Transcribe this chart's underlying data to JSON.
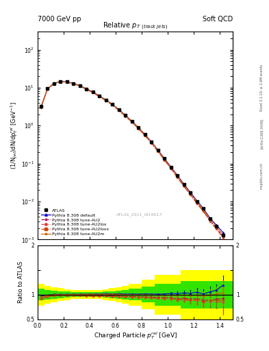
{
  "title_left": "7000 GeV pp",
  "title_right": "Soft QCD",
  "xlabel": "Charged Particle $p_T^{rel}$ [GeV]",
  "ylabel_top": "(1/N$_{jet}$)dN/dp$_T^{rel}$ [GeV$^{-1}$]",
  "ylabel_bottom": "Ratio to ATLAS",
  "watermark": "ATLAS_2011_I919017",
  "right_label_top": "Rivet 3.1.10; ≥ 2.6M events",
  "right_label_mid": "[arXiv:1306.3436]",
  "right_label_bot": "mcplots.cern.ch",
  "x_data": [
    0.025,
    0.075,
    0.125,
    0.175,
    0.225,
    0.275,
    0.325,
    0.375,
    0.425,
    0.475,
    0.525,
    0.575,
    0.625,
    0.675,
    0.725,
    0.775,
    0.825,
    0.875,
    0.925,
    0.975,
    1.025,
    1.075,
    1.125,
    1.175,
    1.225,
    1.275,
    1.325,
    1.375,
    1.425
  ],
  "atlas_y": [
    3.2,
    9.4,
    13.0,
    14.5,
    14.2,
    13.0,
    11.2,
    9.3,
    7.6,
    6.0,
    4.7,
    3.6,
    2.6,
    1.85,
    1.3,
    0.88,
    0.58,
    0.37,
    0.225,
    0.135,
    0.08,
    0.048,
    0.028,
    0.017,
    0.01,
    0.0065,
    0.0035,
    0.0022,
    0.0013
  ],
  "atlas_yerr": [
    0.15,
    0.3,
    0.35,
    0.4,
    0.38,
    0.35,
    0.3,
    0.25,
    0.2,
    0.16,
    0.12,
    0.09,
    0.07,
    0.05,
    0.035,
    0.024,
    0.016,
    0.01,
    0.006,
    0.004,
    0.0025,
    0.0015,
    0.0009,
    0.0005,
    0.0003,
    0.0002,
    0.0001,
    0.0001,
    5e-05
  ],
  "pythia_default_y": [
    3.1,
    9.3,
    13.1,
    14.6,
    14.3,
    13.1,
    11.3,
    9.4,
    7.7,
    6.1,
    4.8,
    3.65,
    2.65,
    1.87,
    1.32,
    0.89,
    0.59,
    0.375,
    0.228,
    0.137,
    0.082,
    0.049,
    0.029,
    0.0175,
    0.0105,
    0.0066,
    0.0037,
    0.0024,
    0.00155
  ],
  "pythia_AU2_y": [
    2.95,
    9.1,
    12.85,
    14.35,
    14.05,
    12.85,
    11.05,
    9.15,
    7.45,
    5.85,
    4.6,
    3.5,
    2.52,
    1.78,
    1.25,
    0.845,
    0.555,
    0.352,
    0.213,
    0.127,
    0.075,
    0.044,
    0.026,
    0.0155,
    0.0092,
    0.0058,
    0.0031,
    0.002,
    0.0012
  ],
  "pythia_AU2lox_y": [
    2.92,
    9.0,
    12.75,
    14.25,
    13.95,
    12.75,
    10.95,
    9.05,
    7.35,
    5.78,
    4.55,
    3.46,
    2.49,
    1.76,
    1.23,
    0.83,
    0.545,
    0.345,
    0.208,
    0.123,
    0.073,
    0.043,
    0.025,
    0.015,
    0.0088,
    0.0055,
    0.003,
    0.0019,
    0.0011
  ],
  "pythia_AU2loxx_y": [
    2.93,
    9.05,
    12.8,
    14.3,
    14.0,
    12.8,
    11.0,
    9.1,
    7.4,
    5.8,
    4.57,
    3.48,
    2.51,
    1.77,
    1.24,
    0.835,
    0.548,
    0.347,
    0.21,
    0.125,
    0.074,
    0.0435,
    0.0255,
    0.0152,
    0.009,
    0.0056,
    0.0031,
    0.00195,
    0.00115
  ],
  "pythia_AU2m_y": [
    3.05,
    9.25,
    13.05,
    14.55,
    14.25,
    13.05,
    11.25,
    9.35,
    7.65,
    6.05,
    4.75,
    3.62,
    2.62,
    1.85,
    1.3,
    0.878,
    0.578,
    0.368,
    0.222,
    0.133,
    0.079,
    0.047,
    0.0278,
    0.0167,
    0.0099,
    0.00627,
    0.00345,
    0.00222,
    0.00135
  ],
  "ratio_default": [
    0.97,
    0.989,
    1.008,
    1.007,
    1.007,
    1.008,
    1.009,
    1.011,
    1.013,
    1.017,
    1.021,
    1.014,
    1.019,
    1.011,
    1.015,
    1.011,
    1.017,
    1.013,
    1.013,
    1.015,
    1.025,
    1.021,
    1.036,
    1.029,
    1.05,
    1.015,
    1.057,
    1.09,
    1.19
  ],
  "ratio_default_err": [
    0.0,
    0.0,
    0.0,
    0.0,
    0.0,
    0.0,
    0.0,
    0.0,
    0.0,
    0.0,
    0.0,
    0.0,
    0.0,
    0.0,
    0.0,
    0.0,
    0.0,
    0.0,
    0.0,
    0.0,
    0.03,
    0.04,
    0.05,
    0.06,
    0.08,
    0.09,
    0.1,
    0.12,
    0.2
  ],
  "ratio_AU2": [
    0.922,
    0.968,
    0.988,
    0.99,
    0.989,
    0.988,
    0.987,
    0.984,
    0.98,
    0.975,
    0.979,
    0.972,
    0.969,
    0.962,
    0.962,
    0.96,
    0.957,
    0.951,
    0.947,
    0.941,
    0.938,
    0.917,
    0.929,
    0.912,
    0.92,
    0.892,
    0.886,
    0.909,
    0.923
  ],
  "ratio_AU2_err": [
    0.0,
    0.0,
    0.0,
    0.0,
    0.0,
    0.0,
    0.0,
    0.0,
    0.0,
    0.0,
    0.0,
    0.0,
    0.0,
    0.0,
    0.0,
    0.0,
    0.0,
    0.0,
    0.0,
    0.0,
    0.03,
    0.04,
    0.05,
    0.07,
    0.09,
    0.1,
    0.12,
    0.15,
    0.25
  ],
  "ratio_AU2lox": [
    0.913,
    0.957,
    0.981,
    0.983,
    0.983,
    0.981,
    0.978,
    0.973,
    0.967,
    0.963,
    0.968,
    0.961,
    0.958,
    0.951,
    0.946,
    0.943,
    0.939,
    0.932,
    0.924,
    0.911,
    0.913,
    0.896,
    0.893,
    0.882,
    0.88,
    0.846,
    0.857,
    0.864,
    0.846
  ],
  "ratio_AU2lox_err": [
    0.0,
    0.0,
    0.0,
    0.0,
    0.0,
    0.0,
    0.0,
    0.0,
    0.0,
    0.0,
    0.0,
    0.0,
    0.0,
    0.0,
    0.0,
    0.0,
    0.0,
    0.0,
    0.0,
    0.0,
    0.03,
    0.04,
    0.05,
    0.07,
    0.09,
    0.1,
    0.12,
    0.15,
    0.25
  ],
  "ratio_AU2loxx": [
    0.916,
    0.963,
    0.985,
    0.986,
    0.986,
    0.985,
    0.982,
    0.978,
    0.974,
    0.967,
    0.972,
    0.967,
    0.965,
    0.957,
    0.954,
    0.949,
    0.945,
    0.938,
    0.933,
    0.926,
    0.925,
    0.906,
    0.911,
    0.894,
    0.9,
    0.862,
    0.886,
    0.886,
    0.885
  ],
  "ratio_AU2loxx_err": [
    0.0,
    0.0,
    0.0,
    0.0,
    0.0,
    0.0,
    0.0,
    0.0,
    0.0,
    0.0,
    0.0,
    0.0,
    0.0,
    0.0,
    0.0,
    0.0,
    0.0,
    0.0,
    0.0,
    0.0,
    0.03,
    0.04,
    0.05,
    0.07,
    0.09,
    0.1,
    0.12,
    0.15,
    0.25
  ],
  "ratio_AU2m": [
    0.953,
    0.984,
    1.004,
    1.003,
    1.004,
    1.004,
    1.004,
    1.005,
    1.007,
    1.008,
    1.011,
    1.006,
    1.008,
    1.0,
    1.0,
    0.997,
    0.997,
    0.995,
    0.987,
    0.985,
    0.988,
    0.979,
    0.993,
    0.982,
    0.99,
    0.965,
    0.986,
    1.009,
    1.038
  ],
  "ratio_AU2m_err": [
    0.0,
    0.0,
    0.0,
    0.0,
    0.0,
    0.0,
    0.0,
    0.0,
    0.0,
    0.0,
    0.0,
    0.0,
    0.0,
    0.0,
    0.0,
    0.0,
    0.0,
    0.0,
    0.0,
    0.0,
    0.03,
    0.04,
    0.05,
    0.07,
    0.09,
    0.1,
    0.12,
    0.15,
    0.25
  ],
  "mc_color_default": "#0000cc",
  "mc_color_AU2": "#bb0055",
  "mc_color_AU2lox": "#dd4444",
  "mc_color_AU2loxx": "#cc4400",
  "mc_color_AU2m": "#cc6600",
  "yellow_band_lo": [
    0.78,
    0.82,
    0.85,
    0.87,
    0.89,
    0.91,
    0.91,
    0.91,
    0.91,
    0.91,
    0.89,
    0.87,
    0.85,
    0.82,
    0.78,
    0.7,
    0.6,
    0.5,
    0.4
  ],
  "yellow_band_hi": [
    1.22,
    1.18,
    1.15,
    1.13,
    1.11,
    1.09,
    1.09,
    1.09,
    1.09,
    1.09,
    1.11,
    1.13,
    1.15,
    1.18,
    1.22,
    1.3,
    1.4,
    1.5,
    1.6
  ],
  "green_band_lo": [
    0.88,
    0.9,
    0.92,
    0.93,
    0.94,
    0.95,
    0.95,
    0.95,
    0.95,
    0.95,
    0.94,
    0.93,
    0.92,
    0.9,
    0.88,
    0.84,
    0.78,
    0.72,
    0.65
  ],
  "green_band_hi": [
    1.12,
    1.1,
    1.08,
    1.07,
    1.06,
    1.05,
    1.05,
    1.05,
    1.05,
    1.05,
    1.06,
    1.07,
    1.08,
    1.1,
    1.12,
    1.16,
    1.22,
    1.28,
    1.35
  ],
  "band_x": [
    0.0,
    0.05,
    0.1,
    0.15,
    0.2,
    0.25,
    0.3,
    0.35,
    0.4,
    0.45,
    0.5,
    0.55,
    0.6,
    0.65,
    0.7,
    0.8,
    0.9,
    1.1,
    1.5
  ]
}
